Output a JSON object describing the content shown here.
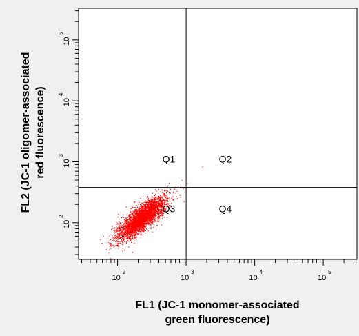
{
  "chart_data": {
    "type": "scatter",
    "xlabel_line1": "FL1 (JC-1 monomer-associated",
    "xlabel_line2": "green fluorescence)",
    "ylabel_line1": "FL2 (JC-1 oligomer-associated",
    "ylabel_line2": "red fluorescence)",
    "xscale": "log",
    "yscale": "log",
    "xlim": [
      27,
      310000
    ],
    "ylim": [
      25,
      330000
    ],
    "x_ticks": [
      {
        "base": "10",
        "exp": "2",
        "value": 100
      },
      {
        "base": "10",
        "exp": "3",
        "value": 1000
      },
      {
        "base": "10",
        "exp": "4",
        "value": 10000
      },
      {
        "base": "10",
        "exp": "5",
        "value": 100000
      }
    ],
    "y_ticks": [
      {
        "base": "10",
        "exp": "2",
        "value": 100
      },
      {
        "base": "10",
        "exp": "3",
        "value": 1000
      },
      {
        "base": "10",
        "exp": "4",
        "value": 10000
      },
      {
        "base": "10",
        "exp": "5",
        "value": 100000
      }
    ],
    "gate_x": 1000,
    "gate_y": 380,
    "quadrants": [
      {
        "label": "Q1",
        "x": 450,
        "y": 980
      },
      {
        "label": "Q2",
        "x": 3000,
        "y": 980
      },
      {
        "label": "Q3",
        "x": 450,
        "y": 150
      },
      {
        "label": "Q4",
        "x": 3000,
        "y": 150
      }
    ],
    "point_color": "#ff0000",
    "grid": false,
    "legend": "none"
  }
}
